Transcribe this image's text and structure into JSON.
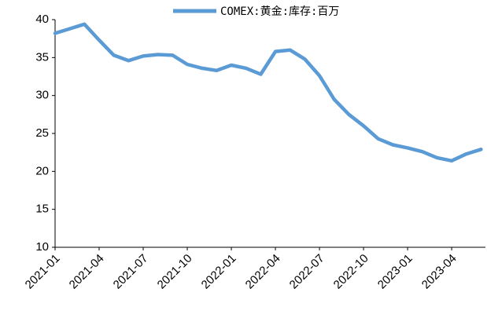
{
  "chart_data": {
    "type": "line",
    "categories": [
      "2021-01",
      null,
      null,
      "2021-04",
      null,
      null,
      "2021-07",
      null,
      null,
      "2021-10",
      null,
      null,
      "2022-01",
      null,
      null,
      "2022-04",
      null,
      null,
      "2022-07",
      null,
      null,
      "2022-10",
      null,
      null,
      "2023-01",
      null,
      null,
      "2023-04",
      null,
      null
    ],
    "series": [
      {
        "name": "COMEX:黄金:库存:百万",
        "color": "#5b9bd5",
        "values": [
          38.2,
          38.8,
          39.4,
          37.3,
          35.3,
          34.6,
          35.2,
          35.4,
          35.3,
          34.1,
          33.6,
          33.3,
          34.0,
          33.6,
          32.8,
          35.8,
          36.0,
          34.8,
          32.6,
          29.5,
          27.5,
          26.0,
          24.3,
          23.5,
          23.1,
          22.6,
          21.8,
          21.4,
          22.3,
          22.9
        ]
      }
    ],
    "ylim": [
      10,
      40
    ],
    "yticks": [
      10,
      15,
      20,
      25,
      30,
      35,
      40
    ],
    "grid": false,
    "legend": "top"
  }
}
